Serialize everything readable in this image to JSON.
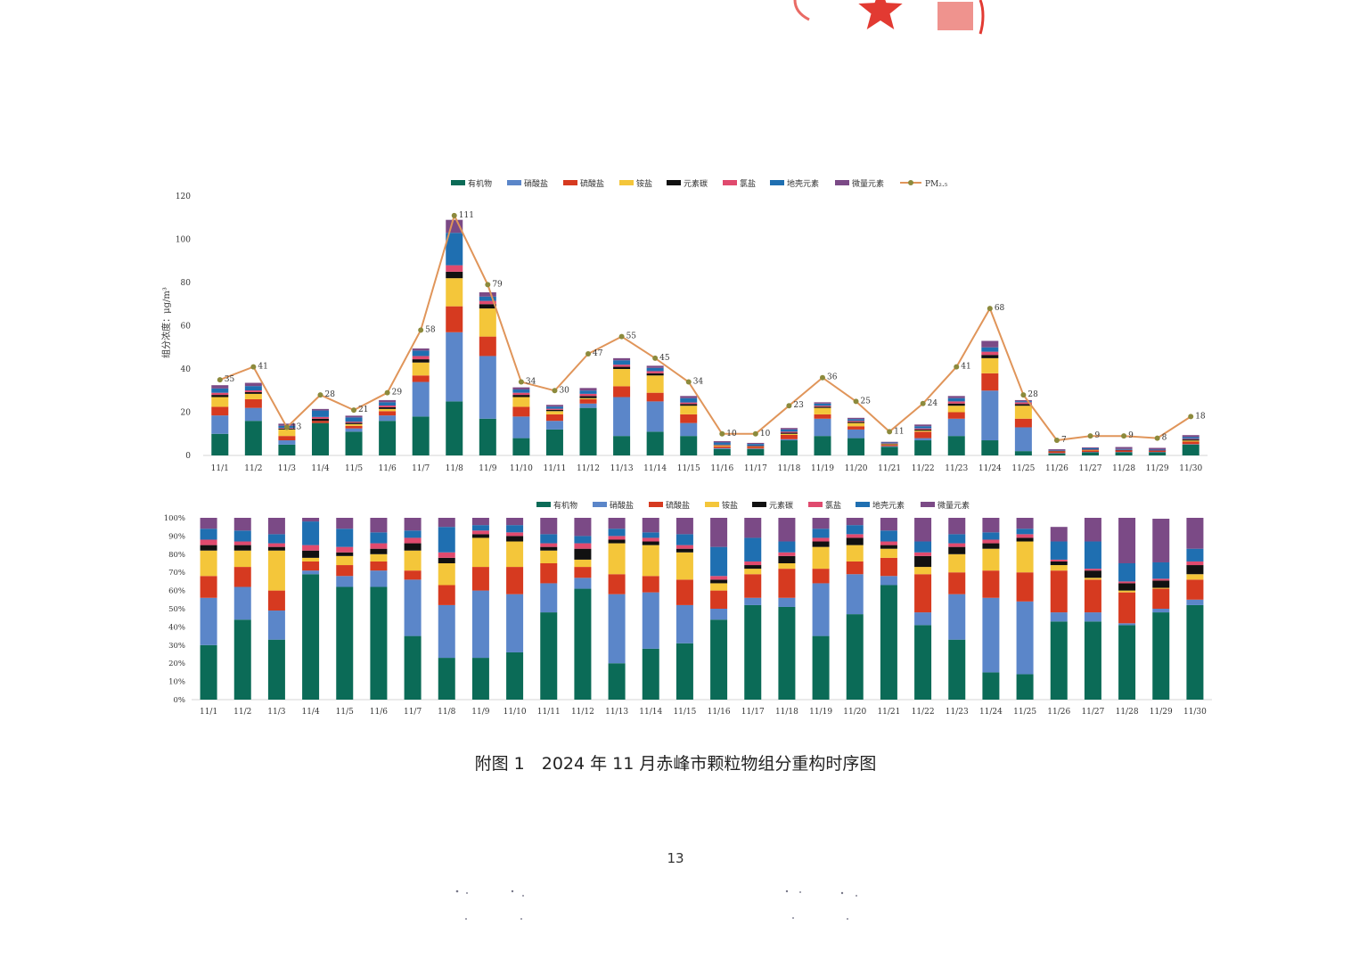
{
  "colors": {
    "有机物": "#0b6b57",
    "硝酸盐": "#5b86c9",
    "硫酸盐": "#d63a20",
    "铵盐": "#f4c63a",
    "元素碳": "#111111",
    "氯盐": "#e04a6e",
    "地壳元素": "#1f6fb1",
    "微量元素": "#7b4a86",
    "pm25_line": "#e0955a",
    "pm25_marker": "#8c8a3c",
    "seal": "#e23a32"
  },
  "chart_data": [
    {
      "type": "bar",
      "stacked": true,
      "ylabel": "组分浓度：μg/m³",
      "ylim": [
        0,
        120
      ],
      "yticks": [
        0,
        20,
        40,
        60,
        80,
        100,
        120
      ],
      "legend_position": "top",
      "categories": [
        "11/1",
        "11/2",
        "11/3",
        "11/4",
        "11/5",
        "11/6",
        "11/7",
        "11/8",
        "11/9",
        "11/10",
        "11/11",
        "11/12",
        "11/13",
        "11/14",
        "11/15",
        "11/16",
        "11/17",
        "11/18",
        "11/19",
        "11/20",
        "11/21",
        "11/22",
        "11/23",
        "11/24",
        "11/25",
        "11/26",
        "11/27",
        "11/28",
        "11/29",
        "11/30"
      ],
      "series": [
        {
          "name": "有机物",
          "values": [
            10,
            16,
            5,
            15,
            11,
            16,
            18,
            25,
            17,
            8,
            12,
            22,
            9,
            11,
            9,
            3,
            3,
            7,
            9,
            8,
            4,
            7,
            9,
            7,
            2,
            1,
            1.5,
            1.5,
            1.5,
            5
          ]
        },
        {
          "name": "硝酸盐",
          "values": [
            8.5,
            6,
            2,
            0,
            1.5,
            2.5,
            16,
            32,
            29,
            10,
            4,
            2,
            18,
            14,
            6,
            0.4,
            0.2,
            0.5,
            8,
            4,
            0.3,
            1,
            8,
            23,
            11,
            0.1,
            0.1,
            0.1,
            0.1,
            0.2
          ]
        },
        {
          "name": "硫酸盐",
          "values": [
            4,
            4,
            2,
            1,
            1.2,
            2,
            3,
            12,
            9,
            4.5,
            3,
            2,
            5,
            4,
            4,
            0.8,
            0.8,
            2,
            2,
            1.5,
            0.6,
            3,
            3,
            8,
            4,
            0.8,
            0.8,
            0.8,
            0.6,
            1.2
          ]
        },
        {
          "name": "铵盐",
          "values": [
            4.5,
            2.5,
            3,
            0,
            0.8,
            1,
            6,
            13,
            13,
            4.5,
            1.5,
            0.5,
            8,
            8,
            4,
            0.4,
            0.2,
            0.5,
            3,
            1.5,
            0.3,
            0.5,
            3,
            7,
            6,
            0.1,
            0.1,
            0,
            0,
            0.5
          ]
        },
        {
          "name": "元素碳",
          "values": [
            1,
            0.8,
            0.4,
            1,
            0.6,
            0.8,
            1.5,
            3,
            2,
            1,
            0.6,
            1,
            1,
            1,
            0.8,
            0.2,
            0.1,
            0.5,
            0.5,
            0.5,
            0.2,
            0.5,
            1,
            1.5,
            0.8,
            0.1,
            0.2,
            0.1,
            0.1,
            0.5
          ]
        },
        {
          "name": "氯盐",
          "values": [
            1,
            0.8,
            0.3,
            0.8,
            0.5,
            0.8,
            1.5,
            3,
            1.5,
            1,
            0.5,
            1,
            1,
            1,
            0.7,
            0.2,
            0.2,
            0.5,
            0.5,
            0.5,
            0.2,
            0.5,
            1,
            1.5,
            0.8,
            0.1,
            0.1,
            0.1,
            0.1,
            0.3
          ]
        },
        {
          "name": "地壳元素",
          "values": [
            2,
            2,
            1,
            3,
            2,
            1.5,
            2.5,
            15,
            2,
            1.5,
            1,
            1.5,
            2,
            1.5,
            2,
            1,
            0.8,
            1,
            1,
            0.8,
            0.4,
            1,
            1.5,
            2,
            0.5,
            0.3,
            0.5,
            0.4,
            0.3,
            0.8
          ]
        },
        {
          "name": "微量元素",
          "values": [
            1.5,
            1.5,
            1,
            0.7,
            0.8,
            1,
            1,
            6,
            2,
            1,
            0.8,
            1.2,
            1,
            1,
            1,
            0.6,
            0.5,
            0.7,
            0.6,
            0.6,
            0.3,
            0.8,
            1,
            3,
            0.5,
            0.4,
            0.4,
            0.9,
            0.8,
            0.9
          ]
        }
      ],
      "line": {
        "name": "PM₂.₅",
        "values": [
          35,
          41,
          13,
          28,
          21,
          29,
          58,
          111,
          79,
          34,
          30,
          47,
          55,
          45,
          34,
          10,
          10,
          23,
          36,
          25,
          11,
          24,
          41,
          68,
          28,
          7,
          9,
          9,
          8,
          18
        ]
      }
    },
    {
      "type": "bar",
      "stacked": true,
      "percent": true,
      "ylim": [
        0,
        100
      ],
      "yticks": [
        "0%",
        "10%",
        "20%",
        "30%",
        "40%",
        "50%",
        "60%",
        "70%",
        "80%",
        "90%",
        "100%"
      ],
      "legend_position": "top",
      "categories": [
        "11/1",
        "11/2",
        "11/3",
        "11/4",
        "11/5",
        "11/6",
        "11/7",
        "11/8",
        "11/9",
        "11/10",
        "11/11",
        "11/12",
        "11/13",
        "11/14",
        "11/15",
        "11/16",
        "11/17",
        "11/18",
        "11/19",
        "11/20",
        "11/21",
        "11/22",
        "11/23",
        "11/24",
        "11/25",
        "11/26",
        "11/27",
        "11/28",
        "11/29",
        "11/30"
      ],
      "series": [
        {
          "name": "有机物",
          "values": [
            30,
            44,
            33,
            69,
            62,
            62,
            35,
            23,
            23,
            26,
            48,
            61,
            20,
            28,
            31,
            44,
            52,
            51,
            35,
            47,
            63,
            41,
            33,
            15,
            14,
            43,
            43,
            41,
            48,
            52
          ]
        },
        {
          "name": "硝酸盐",
          "values": [
            26,
            18,
            16,
            2,
            6,
            9,
            31,
            29,
            37,
            32,
            16,
            6,
            38,
            31,
            21,
            6,
            4,
            5,
            29,
            22,
            5,
            7,
            25,
            41,
            40,
            5,
            5,
            1,
            2,
            3
          ]
        },
        {
          "name": "硫酸盐",
          "values": [
            12,
            11,
            11,
            5,
            6,
            5,
            5,
            11,
            13,
            15,
            11,
            6,
            11,
            9,
            14,
            10,
            13,
            16,
            8,
            7,
            10,
            21,
            12,
            15,
            16,
            23,
            18,
            17,
            11,
            11
          ]
        },
        {
          "name": "铵盐",
          "values": [
            14,
            9,
            22,
            2,
            5,
            4,
            11,
            12,
            16,
            14,
            7,
            4,
            17,
            17,
            15,
            4,
            3,
            3,
            12,
            9,
            5,
            4,
            10,
            12,
            17,
            3,
            1,
            1,
            0.5,
            3
          ]
        },
        {
          "name": "元素碳",
          "values": [
            3,
            3,
            2,
            4,
            2,
            3,
            4,
            3,
            2,
            3,
            2,
            6,
            2,
            2,
            2,
            2,
            2,
            4,
            3,
            4,
            2,
            6,
            4,
            3,
            2,
            2,
            4,
            4,
            4,
            5
          ]
        },
        {
          "name": "氯盐",
          "values": [
            3,
            2,
            2,
            3,
            3,
            3,
            3,
            3,
            2,
            2,
            2,
            3,
            2,
            2,
            2,
            2,
            2,
            2,
            2,
            2,
            2,
            2,
            2,
            2,
            2,
            1,
            1,
            1,
            1,
            2
          ]
        },
        {
          "name": "地壳元素",
          "values": [
            6,
            6,
            5,
            13,
            10,
            6,
            4,
            14,
            3,
            4,
            5,
            4,
            4,
            3,
            6,
            16,
            13,
            6,
            5,
            5,
            6,
            6,
            5,
            4,
            3,
            10,
            15,
            10,
            9,
            7
          ]
        },
        {
          "name": "微量元素",
          "values": [
            6,
            7,
            9,
            2,
            6,
            8,
            7,
            5,
            4,
            4,
            9,
            10,
            6,
            8,
            9,
            16,
            11,
            13,
            6,
            4,
            7,
            13,
            9,
            8,
            6,
            8,
            13,
            25,
            24,
            17
          ]
        }
      ]
    }
  ],
  "caption": "附图 1　2024 年 11 月赤峰市颗粒物组分重构时序图",
  "page_number": "13"
}
